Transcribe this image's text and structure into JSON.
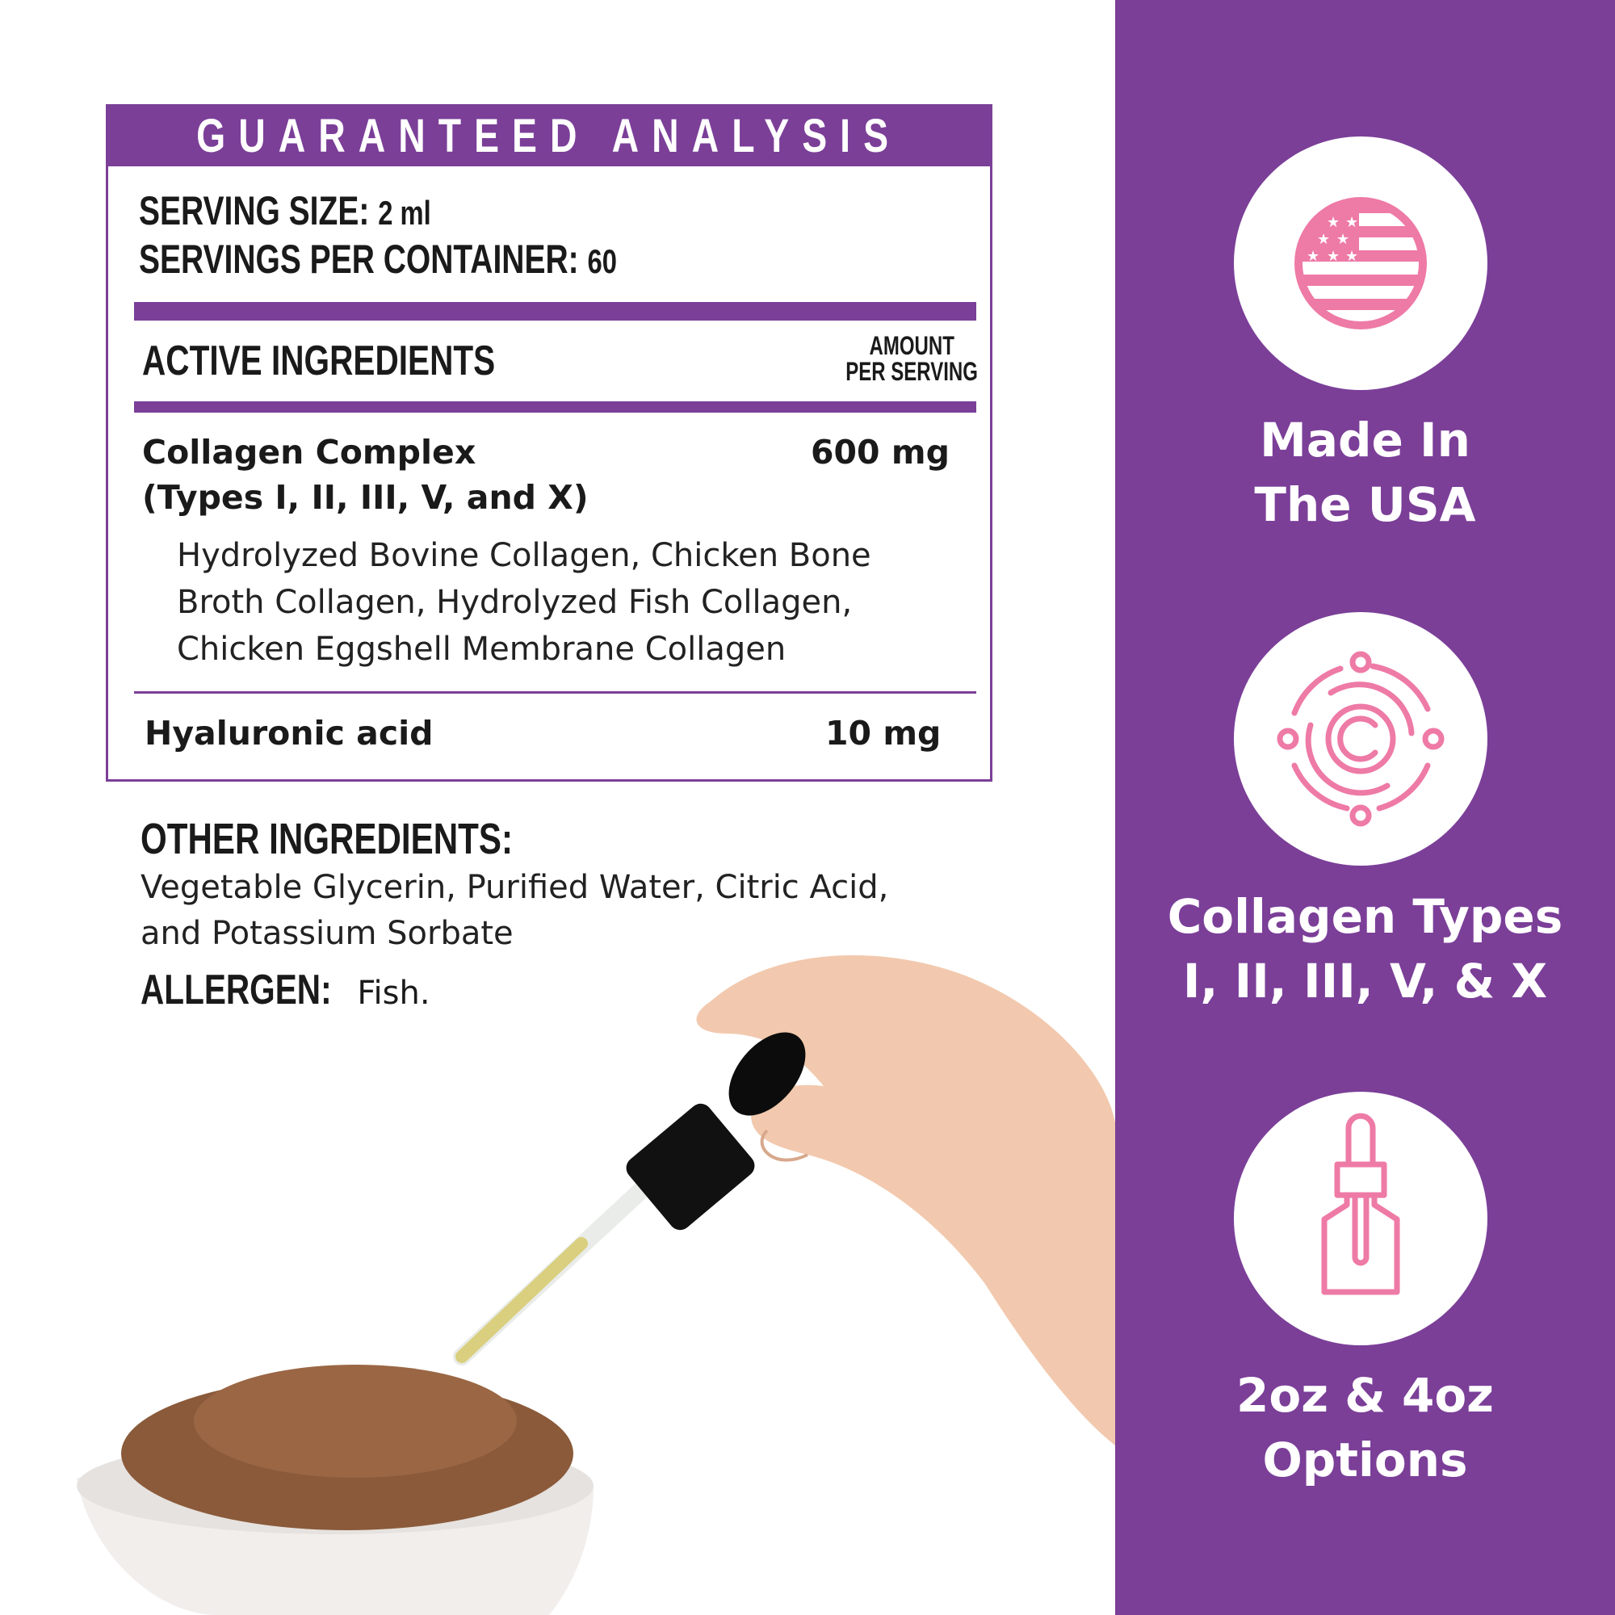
{
  "colors": {
    "brand_purple": "#7b3f98",
    "icon_pink": "#ee7aa6",
    "text": "#1a1a1a"
  },
  "table": {
    "title": "GUARANTEED ANALYSIS",
    "serving_size_label": "SERVING SIZE:",
    "serving_size_value": "2 ml",
    "servings_label": "SERVINGS PER CONTAINER:",
    "servings_value": "60",
    "active_header": "ACTIVE INGREDIENTS",
    "amount_header_1": "AMOUNT",
    "amount_header_2": "PER SERVING",
    "rows": [
      {
        "name_1": "Collagen Complex",
        "name_2": "(Types I, II, III, V, and X)",
        "amount": "600 mg",
        "sources": [
          "Hydrolyzed Bovine Collagen, Chicken Bone",
          "Broth Collagen, Hydrolyzed Fish Collagen,",
          "Chicken Eggshell Membrane Collagen"
        ]
      },
      {
        "name_1": "Hyaluronic acid",
        "amount": "10 mg"
      }
    ]
  },
  "other": {
    "label": "OTHER INGREDIENTS:",
    "lines": [
      "Vegetable Glycerin, Purified Water, Citric Acid,",
      "and Potassium Sorbate"
    ],
    "allergen_label": "ALLERGEN:",
    "allergen_value": "Fish."
  },
  "features": [
    {
      "icon": "us-flag-icon",
      "line1": "Made In",
      "line2": "The USA"
    },
    {
      "icon": "collagen-molecule-icon",
      "line1": "Collagen Types",
      "line2": "I, II, III, V, & X"
    },
    {
      "icon": "dropper-bottle-icon",
      "line1": "2oz & 4oz",
      "line2": "Options"
    }
  ]
}
